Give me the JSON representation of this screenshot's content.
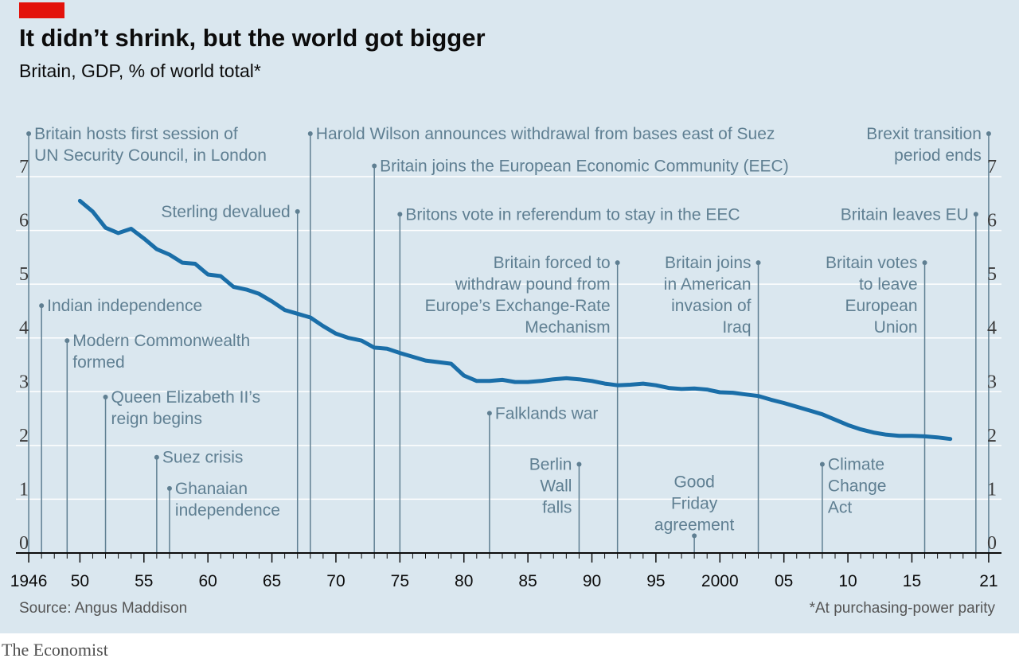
{
  "title": "It didn’t shrink, but the world got bigger",
  "subtitle": "Britain, GDP, % of world total*",
  "source": "Source: Angus Maddison",
  "footnote": "*At purchasing-power parity",
  "brand": "The Economist",
  "colors": {
    "accent_red": "#e3120b",
    "line": "#1a6ea8",
    "annotation": "#5f7f92",
    "panel": "#dae7ef",
    "grid": "#ffffff"
  },
  "chart_data": {
    "type": "line",
    "title": "It didn’t shrink, but the world got bigger",
    "subtitle": "Britain, GDP, % of world total*",
    "xlabel": "",
    "ylabel": "",
    "xlim": [
      1945,
      2022
    ],
    "ylim": [
      0,
      7
    ],
    "grid": true,
    "y_ticks": [
      0,
      1,
      2,
      3,
      4,
      5,
      6,
      7
    ],
    "y_tick_labels": [
      "0",
      "1",
      "2",
      "3",
      "4",
      "5",
      "6",
      "7"
    ],
    "x_ticks": [
      {
        "value": 1946,
        "label": "1946"
      },
      {
        "value": 1950,
        "label": "50"
      },
      {
        "value": 1955,
        "label": "55"
      },
      {
        "value": 1960,
        "label": "60"
      },
      {
        "value": 1965,
        "label": "65"
      },
      {
        "value": 1970,
        "label": "70"
      },
      {
        "value": 1975,
        "label": "75"
      },
      {
        "value": 1980,
        "label": "80"
      },
      {
        "value": 1985,
        "label": "85"
      },
      {
        "value": 1990,
        "label": "90"
      },
      {
        "value": 1995,
        "label": "95"
      },
      {
        "value": 2000,
        "label": "2000"
      },
      {
        "value": 2005,
        "label": "05"
      },
      {
        "value": 2010,
        "label": "10"
      },
      {
        "value": 2015,
        "label": "15"
      },
      {
        "value": 2021,
        "label": "21"
      }
    ],
    "series": [
      {
        "x": [
          1950,
          1951,
          1952,
          1953,
          1954,
          1955,
          1956,
          1957,
          1958,
          1959,
          1960,
          1961,
          1962,
          1963,
          1964,
          1965,
          1966,
          1967,
          1968,
          1969,
          1970,
          1971,
          1972,
          1973,
          1974,
          1975,
          1976,
          1977,
          1978,
          1979,
          1980,
          1981,
          1982,
          1983,
          1984,
          1985,
          1986,
          1987,
          1988,
          1989,
          1990,
          1991,
          1992,
          1993,
          1994,
          1995,
          1996,
          1997,
          1998,
          1999,
          2000,
          2001,
          2002,
          2003,
          2004,
          2005,
          2006,
          2007,
          2008,
          2009,
          2010,
          2011,
          2012,
          2013,
          2014,
          2015,
          2016,
          2017,
          2018
        ],
        "values": [
          6.55,
          6.35,
          6.05,
          5.95,
          6.03,
          5.85,
          5.65,
          5.55,
          5.4,
          5.38,
          5.18,
          5.15,
          4.95,
          4.9,
          4.82,
          4.68,
          4.52,
          4.45,
          4.38,
          4.22,
          4.08,
          4.0,
          3.95,
          3.82,
          3.8,
          3.72,
          3.65,
          3.58,
          3.55,
          3.52,
          3.3,
          3.2,
          3.2,
          3.22,
          3.18,
          3.18,
          3.2,
          3.23,
          3.25,
          3.23,
          3.2,
          3.15,
          3.12,
          3.13,
          3.15,
          3.12,
          3.07,
          3.05,
          3.06,
          3.04,
          2.99,
          2.98,
          2.95,
          2.92,
          2.85,
          2.79,
          2.72,
          2.65,
          2.58,
          2.48,
          2.38,
          2.3,
          2.24,
          2.2,
          2.18,
          2.18,
          2.17,
          2.15,
          2.12
        ]
      }
    ],
    "annotations": [
      {
        "year": 1946,
        "lines": [
          "Britain hosts first session of",
          "UN Security Council, in London"
        ],
        "side": "right",
        "top": 7.8,
        "bottom": 0
      },
      {
        "year": 1947,
        "lines": [
          "Indian independence"
        ],
        "side": "right",
        "top": 4.6,
        "bottom": 0
      },
      {
        "year": 1949,
        "lines": [
          "Modern Commonwealth",
          "formed"
        ],
        "side": "right",
        "top": 3.95,
        "bottom": 0
      },
      {
        "year": 1952,
        "lines": [
          "Queen Elizabeth II’s",
          "reign begins"
        ],
        "side": "right",
        "top": 2.9,
        "bottom": 0
      },
      {
        "year": 1956,
        "lines": [
          "Suez crisis"
        ],
        "side": "right",
        "top": 1.78,
        "bottom": 0
      },
      {
        "year": 1957,
        "lines": [
          "Ghanaian",
          "independence"
        ],
        "side": "right",
        "top": 1.2,
        "bottom": 0
      },
      {
        "year": 1967,
        "lines": [
          "Sterling devalued"
        ],
        "side": "left",
        "top": 6.35,
        "bottom": 0
      },
      {
        "year": 1968,
        "lines": [
          "Harold Wilson announces withdrawal from bases east of Suez"
        ],
        "side": "right",
        "top": 7.8,
        "bottom": 0
      },
      {
        "year": 1973,
        "lines": [
          "Britain joins the European Economic Community (EEC)"
        ],
        "side": "right",
        "top": 7.2,
        "bottom": 0
      },
      {
        "year": 1975,
        "lines": [
          "Britons vote in referendum to stay in the EEC"
        ],
        "side": "right",
        "top": 6.3,
        "bottom": 0
      },
      {
        "year": 1982,
        "lines": [
          "Falklands war"
        ],
        "side": "right",
        "top": 2.6,
        "bottom": 0
      },
      {
        "year": 1989,
        "lines": [
          "Berlin",
          "Wall",
          "falls"
        ],
        "side": "left",
        "top": 1.65,
        "bottom": 0
      },
      {
        "year": 1992,
        "lines": [
          "Britain forced to",
          "withdraw pound from",
          "Europe’s Exchange-Rate",
          "Mechanism"
        ],
        "side": "left",
        "top": 5.4,
        "bottom": 0
      },
      {
        "year": 1998,
        "lines": [
          "Good",
          "Friday",
          "agreement"
        ],
        "side": "below",
        "top": 0.32,
        "bottom": 0
      },
      {
        "year": 2003,
        "lines": [
          "Britain joins",
          "in American",
          "invasion of",
          "Iraq"
        ],
        "side": "left",
        "top": 5.4,
        "bottom": 0
      },
      {
        "year": 2008,
        "lines": [
          "Climate",
          "Change",
          "Act"
        ],
        "side": "right",
        "top": 1.65,
        "bottom": 0
      },
      {
        "year": 2016,
        "lines": [
          "Britain votes",
          "to leave",
          "European",
          "Union"
        ],
        "side": "left",
        "top": 5.4,
        "bottom": 0
      },
      {
        "year": 2020,
        "lines": [
          "Britain leaves EU"
        ],
        "side": "left",
        "top": 6.3,
        "bottom": 0
      },
      {
        "year": 2021,
        "lines": [
          "Brexit transition",
          "period ends"
        ],
        "side": "left",
        "top": 7.8,
        "bottom": 0
      }
    ]
  }
}
